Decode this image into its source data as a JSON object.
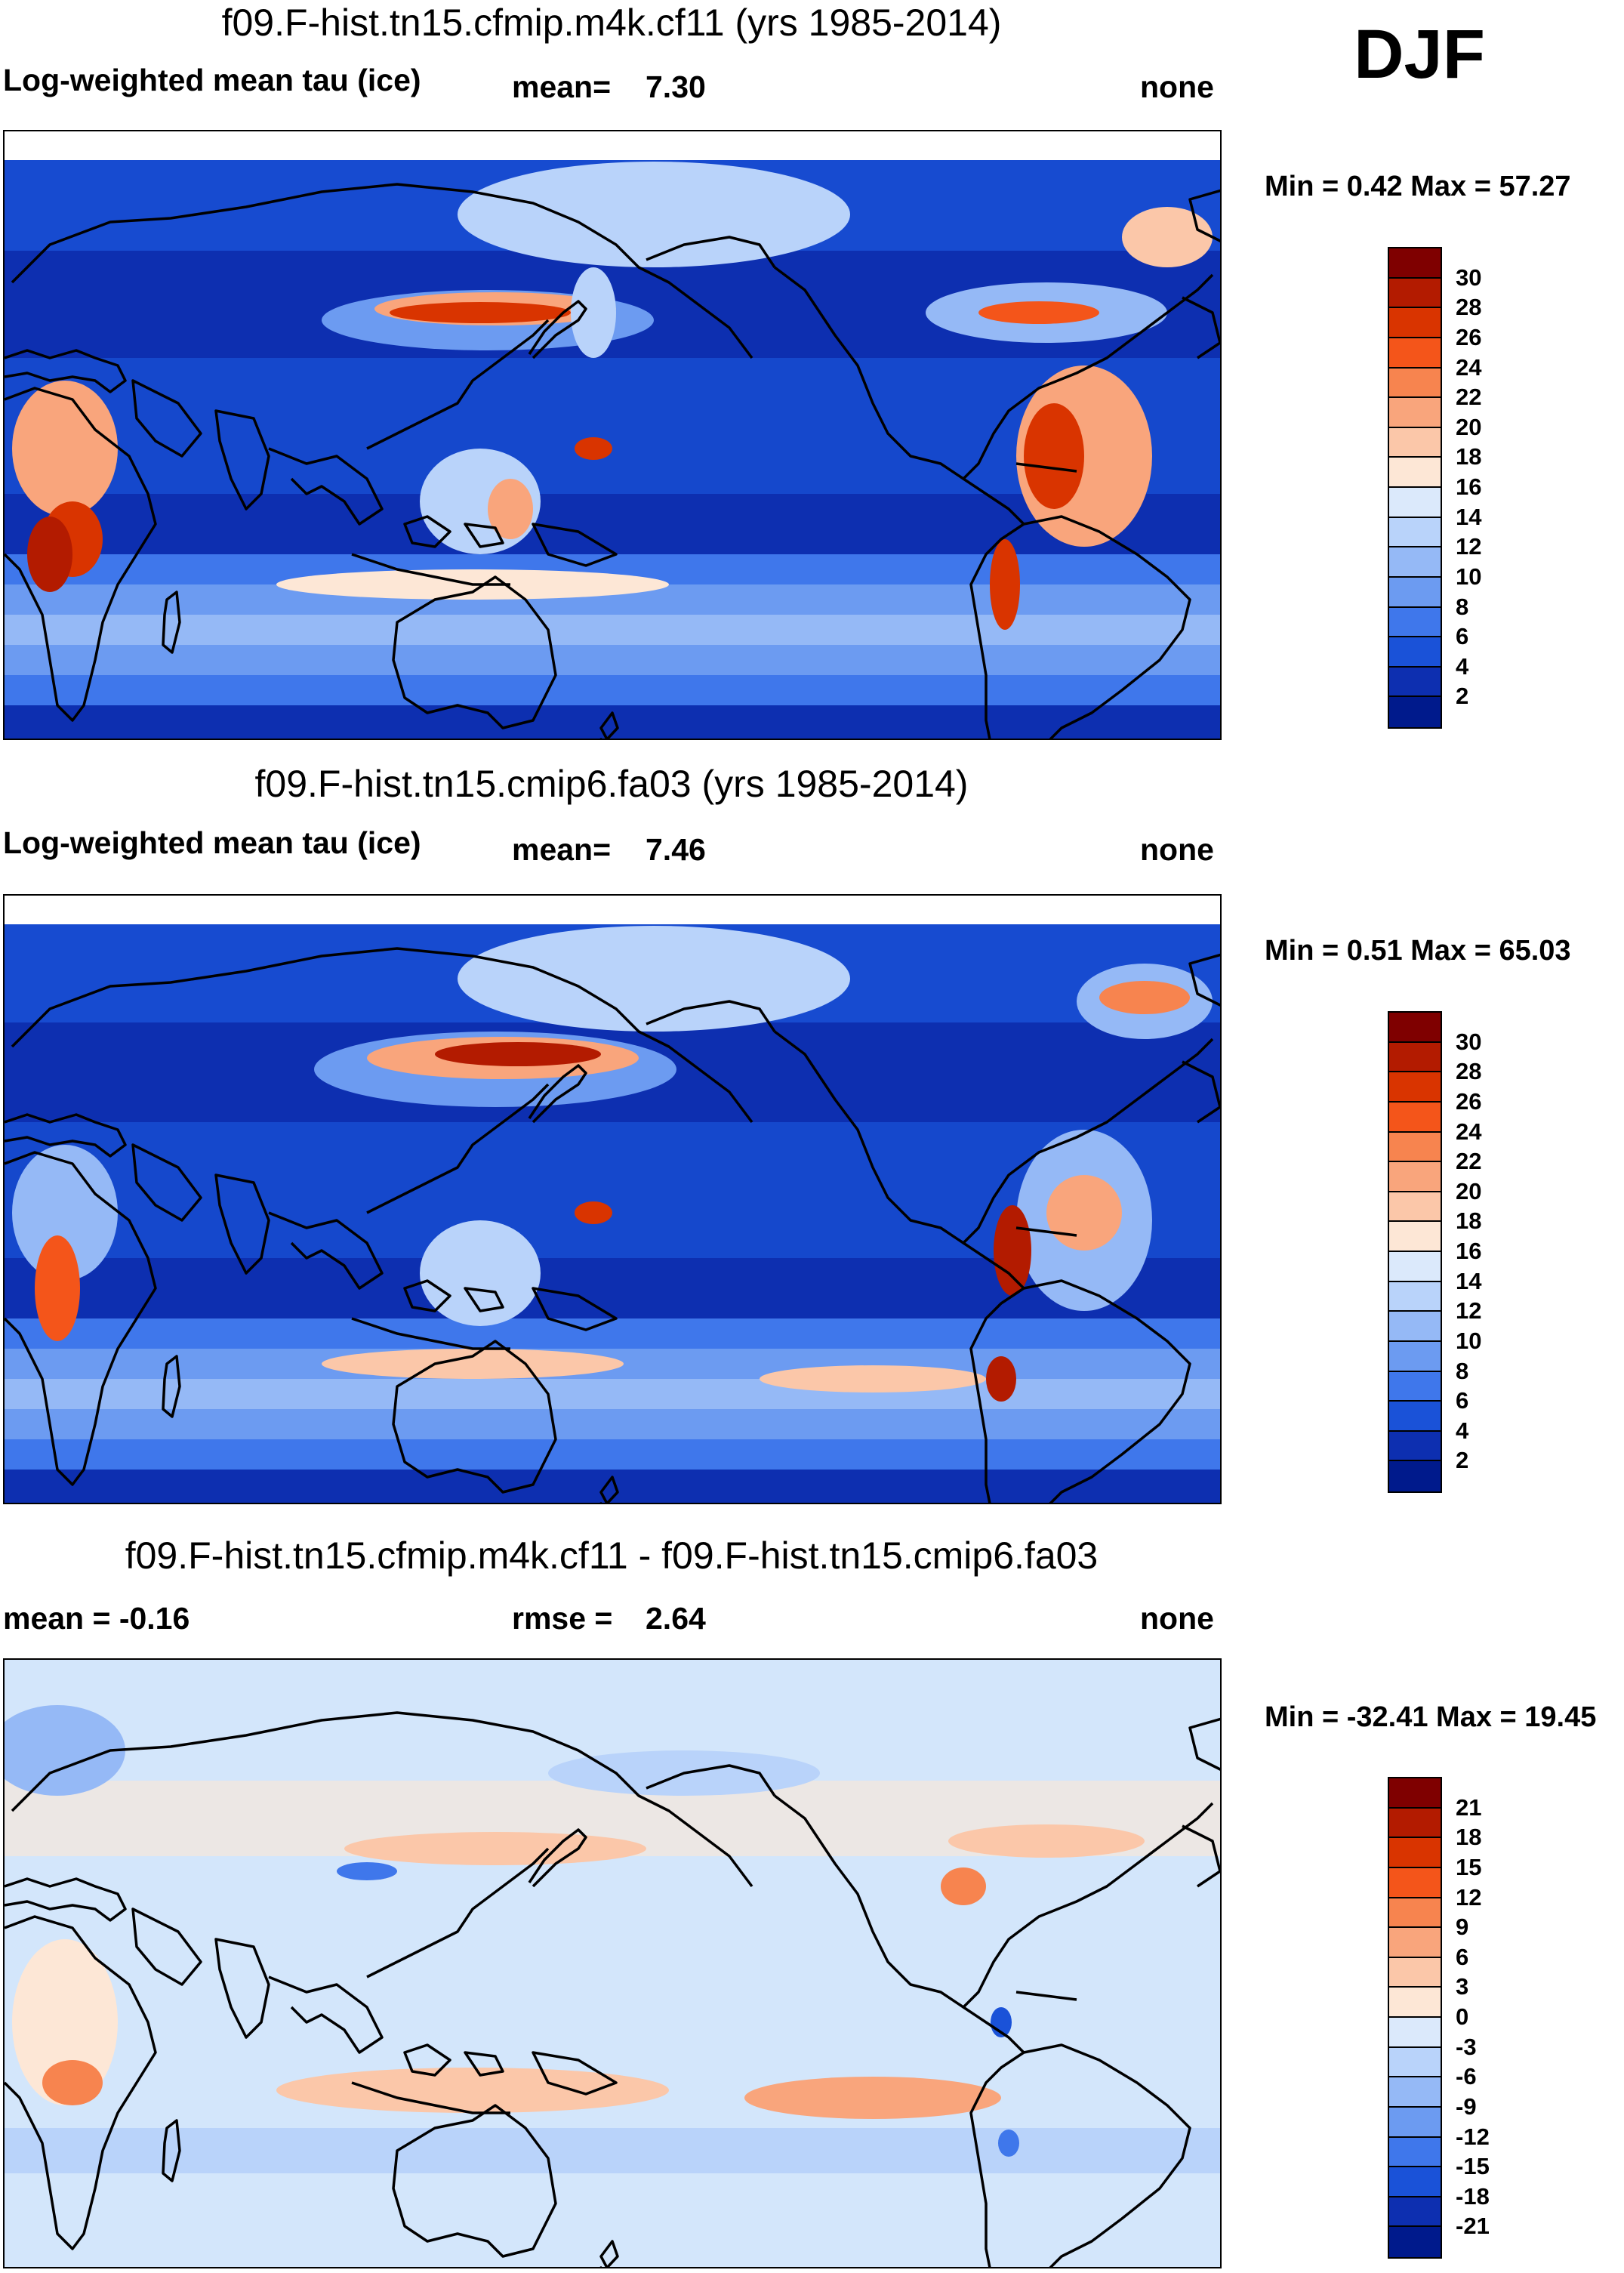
{
  "season": "DJF",
  "colors": {
    "land": "#1a1a1a",
    "ocean_deep": "#0a2bb8",
    "ocean_mid": "#2a62e0",
    "diff_base": "#d3e6fb",
    "blank": "#ffffff"
  },
  "panels": [
    {
      "title": "f09.F-hist.tn15.cfmip.m4k.cf11 (yrs 1985-2014)",
      "left": "Log-weighted mean tau (ice)",
      "mid_label": "mean=",
      "mid_value": "7.30",
      "right": "none",
      "minmax": "Min =   0.42 Max =  57.27",
      "map": "field-a",
      "colorbar": {
        "ticks": [
          "30",
          "28",
          "26",
          "24",
          "22",
          "20",
          "18",
          "16",
          "14",
          "12",
          "10",
          "8",
          "6",
          "4",
          "2"
        ],
        "colors": [
          "#7f0000",
          "#b31b00",
          "#d93400",
          "#f4551a",
          "#f7844f",
          "#f9a57c",
          "#fbc7a9",
          "#fde7d6",
          "#dbe9fb",
          "#b9d3fa",
          "#95b9f6",
          "#6c9bf1",
          "#3f77eb",
          "#1a52d8",
          "#0d2fb0",
          "#001a8c"
        ]
      }
    },
    {
      "title": "f09.F-hist.tn15.cmip6.fa03 (yrs 1985-2014)",
      "left": "Log-weighted mean tau (ice)",
      "mid_label": "mean=",
      "mid_value": "7.46",
      "right": "none",
      "minmax": "Min =   0.51 Max =  65.03",
      "map": "field-b",
      "colorbar": {
        "ticks": [
          "30",
          "28",
          "26",
          "24",
          "22",
          "20",
          "18",
          "16",
          "14",
          "12",
          "10",
          "8",
          "6",
          "4",
          "2"
        ],
        "colors": [
          "#7f0000",
          "#b31b00",
          "#d93400",
          "#f4551a",
          "#f7844f",
          "#f9a57c",
          "#fbc7a9",
          "#fde7d6",
          "#dbe9fb",
          "#b9d3fa",
          "#95b9f6",
          "#6c9bf1",
          "#3f77eb",
          "#1a52d8",
          "#0d2fb0",
          "#001a8c"
        ]
      }
    },
    {
      "title": "f09.F-hist.tn15.cfmip.m4k.cf11 - f09.F-hist.tn15.cmip6.fa03",
      "left": "mean =  -0.16",
      "mid_label": "rmse =",
      "mid_value": "2.64",
      "right": "none",
      "minmax": "Min = -32.41 Max =  19.45",
      "map": "diff",
      "colorbar": {
        "ticks": [
          "21",
          "18",
          "15",
          "12",
          "9",
          "6",
          "3",
          "0",
          "-3",
          "-6",
          "-9",
          "-12",
          "-15",
          "-18",
          "-21"
        ],
        "colors": [
          "#7f0000",
          "#b31b00",
          "#d93400",
          "#f4551a",
          "#f7844f",
          "#f9a57c",
          "#fbc7a9",
          "#fde7d6",
          "#dbe9fb",
          "#b9d3fa",
          "#95b9f6",
          "#6c9bf1",
          "#3f77eb",
          "#1a52d8",
          "#0d2fb0",
          "#001a8c"
        ]
      }
    }
  ]
}
